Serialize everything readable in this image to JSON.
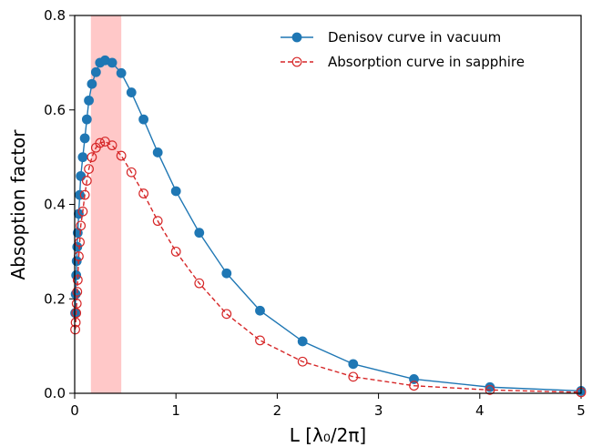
{
  "chart_data": {
    "type": "line",
    "xlabel": "L [λ₀/2π]",
    "ylabel": "Absoption factor",
    "x": [
      0.005,
      0.01,
      0.015,
      0.02,
      0.025,
      0.03,
      0.04,
      0.05,
      0.06,
      0.08,
      0.1,
      0.12,
      0.14,
      0.17,
      0.21,
      0.25,
      0.3,
      0.37,
      0.46,
      0.56,
      0.68,
      0.82,
      1.0,
      1.23,
      1.5,
      1.83,
      2.25,
      2.75,
      3.35,
      4.1,
      5.0
    ],
    "series": [
      {
        "name": "Denisov curve in vacuum",
        "color": "#1f77b4",
        "style": "solid",
        "marker": "filled",
        "values": [
          0.17,
          0.21,
          0.25,
          0.28,
          0.31,
          0.34,
          0.38,
          0.42,
          0.46,
          0.5,
          0.54,
          0.58,
          0.62,
          0.655,
          0.68,
          0.7,
          0.705,
          0.7,
          0.678,
          0.637,
          0.58,
          0.51,
          0.428,
          0.34,
          0.254,
          0.175,
          0.11,
          0.062,
          0.03,
          0.013,
          0.005
        ]
      },
      {
        "name": "Absorption curve in sapphire",
        "color": "#d62728",
        "style": "dashed",
        "marker": "open",
        "values": [
          0.135,
          0.15,
          0.17,
          0.19,
          0.215,
          0.24,
          0.29,
          0.32,
          0.355,
          0.385,
          0.42,
          0.45,
          0.475,
          0.5,
          0.52,
          0.53,
          0.533,
          0.525,
          0.503,
          0.468,
          0.423,
          0.365,
          0.3,
          0.233,
          0.168,
          0.112,
          0.067,
          0.035,
          0.016,
          0.007,
          0.002
        ]
      }
    ],
    "highlight_span": [
      0.16,
      0.46
    ],
    "highlight_color": "#ffc8c8",
    "xlim": [
      0,
      5
    ],
    "xticks": [
      0,
      1,
      2,
      3,
      4,
      5
    ],
    "ylim": [
      0,
      0.8
    ],
    "yticks": [
      {
        "value": 0,
        "label": "0.0"
      },
      0.2,
      0.4,
      0.6,
      0.8
    ],
    "legend": "upper right",
    "grid": false
  }
}
